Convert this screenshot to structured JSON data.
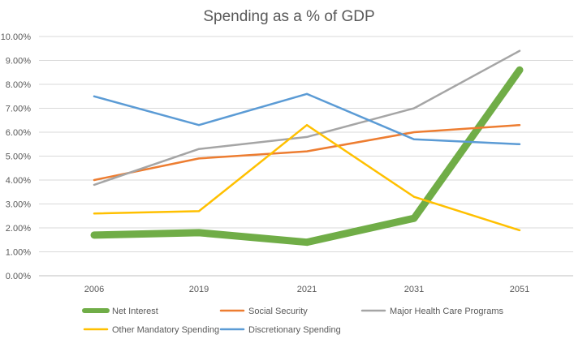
{
  "chart_data": {
    "type": "line",
    "title": "Spending as a % of GDP",
    "xlabel": "",
    "ylabel": "",
    "categories": [
      "2006",
      "2019",
      "2021",
      "2031",
      "2051"
    ],
    "ylim": [
      0,
      10
    ],
    "y_ticks": [
      "0.00%",
      "1.00%",
      "2.00%",
      "3.00%",
      "4.00%",
      "5.00%",
      "6.00%",
      "7.00%",
      "8.00%",
      "9.00%",
      "10.00%"
    ],
    "grid": "horizontal",
    "legend_position": "bottom",
    "series": [
      {
        "name": "Net Interest",
        "color": "#70AD47",
        "emphasis": "thick",
        "values": [
          1.7,
          1.8,
          1.4,
          2.4,
          8.6
        ]
      },
      {
        "name": "Social Security",
        "color": "#ED7D31",
        "values": [
          4.0,
          4.9,
          5.2,
          6.0,
          6.3
        ]
      },
      {
        "name": "Major Health Care Programs",
        "color": "#A5A5A5",
        "values": [
          3.8,
          5.3,
          5.8,
          7.0,
          9.4
        ]
      },
      {
        "name": "Other Mandatory Spending",
        "color": "#FFC000",
        "values": [
          2.6,
          2.7,
          6.3,
          3.3,
          1.9
        ]
      },
      {
        "name": "Discretionary Spending",
        "color": "#5B9BD5",
        "values": [
          7.5,
          6.3,
          7.6,
          5.7,
          5.5
        ]
      }
    ]
  }
}
